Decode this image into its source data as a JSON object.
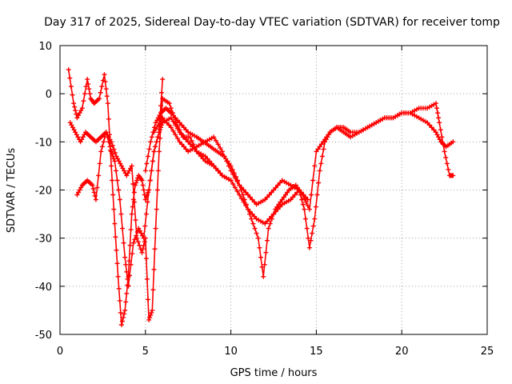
{
  "chart_data": {
    "type": "scatter",
    "title": "Day 317 of 2025, Sidereal Day-to-day VTEC variation (SDTVAR) for receiver tomp",
    "xlabel": "GPS time / hours",
    "ylabel": "SDTVAR / TECUs",
    "xlim": [
      0,
      25
    ],
    "ylim": [
      -50,
      10
    ],
    "xticks": [
      "0",
      "5",
      "10",
      "15",
      "20",
      "25"
    ],
    "yticks": [
      "10",
      "0",
      "-10",
      "-20",
      "-30",
      "-40",
      "-50"
    ],
    "grid": true,
    "marker": "+",
    "color": "#ff0000",
    "series": [
      {
        "x": [
          0.5,
          0.8,
          1.0,
          1.3,
          1.6,
          1.8,
          2.0,
          2.3,
          2.6,
          2.8,
          3.0,
          3.2,
          3.4,
          3.6,
          3.8,
          4.0,
          4.2,
          4.4,
          4.6,
          4.8,
          5.0,
          5.2,
          5.5,
          5.8,
          6.0
        ],
        "y": [
          5,
          -2,
          -5,
          -3,
          3,
          -1,
          -2,
          -1,
          4,
          -2,
          -15,
          -27,
          -38,
          -48,
          -45,
          -38,
          -25,
          -19,
          -17,
          -18,
          -22,
          -20,
          -12,
          -8,
          3
        ]
      },
      {
        "x": [
          0.6,
          0.9,
          1.2,
          1.5,
          1.8,
          2.1,
          2.4,
          2.7,
          3.0,
          3.2,
          3.5,
          3.8,
          4.0,
          4.3,
          4.6,
          4.9,
          5.2,
          5.5,
          5.8,
          6.0,
          6.5,
          7.0,
          7.5,
          8.0,
          8.5,
          9.0,
          9.5,
          10.0
        ],
        "y": [
          -6,
          -8,
          -10,
          -8,
          -9,
          -10,
          -9,
          -8,
          -12,
          -14,
          -22,
          -34,
          -40,
          -31,
          -28,
          -30,
          -20,
          -12,
          -8,
          -6,
          -5,
          -8,
          -10,
          -12,
          -14,
          -15,
          -17,
          -18
        ]
      },
      {
        "x": [
          1.0,
          1.3,
          1.6,
          1.9,
          2.1,
          2.4,
          2.7,
          3.0,
          3.3,
          3.6,
          3.9,
          4.2,
          4.5,
          4.8,
          5.0,
          5.2,
          5.4,
          5.6,
          5.8,
          6.0,
          6.4,
          6.8,
          7.2,
          7.6,
          8.0,
          8.5,
          9.0,
          9.5,
          10.0,
          10.5,
          11.0,
          11.5,
          12.0,
          12.5,
          13.0,
          13.5,
          14.0,
          14.5
        ],
        "y": [
          -21,
          -19,
          -18,
          -19,
          -22,
          -12,
          -8,
          -10,
          -13,
          -15,
          -17,
          -15,
          -30,
          -33,
          -30,
          -47,
          -45,
          -28,
          -12,
          -1,
          -2,
          -6,
          -9,
          -9,
          -12,
          -13,
          -15,
          -17,
          -18,
          -21,
          -24,
          -26,
          -27,
          -25,
          -23,
          -22,
          -20,
          -22
        ]
      },
      {
        "x": [
          5.0,
          5.3,
          5.6,
          5.9,
          6.2,
          6.5,
          7.0,
          7.5,
          8.0,
          8.4,
          8.8,
          9.2,
          9.6,
          10.0,
          10.4,
          10.8,
          11.2,
          11.6,
          11.9,
          12.2,
          12.6,
          13.0,
          13.4,
          13.8,
          14.2,
          14.6,
          15.0,
          15.4,
          15.8,
          16.2,
          16.6,
          17.0,
          17.5,
          18.0,
          18.5,
          19.0,
          19.5,
          20.0,
          20.5,
          21.0,
          21.5,
          22.0,
          22.3,
          22.6,
          23.0
        ],
        "y": [
          -16,
          -10,
          -6,
          -4,
          -3,
          -4,
          -6,
          -8,
          -9,
          -10,
          -11,
          -12,
          -13,
          -15,
          -18,
          -22,
          -26,
          -30,
          -38,
          -28,
          -24,
          -22,
          -20,
          -19,
          -21,
          -24,
          -12,
          -10,
          -8,
          -7,
          -8,
          -9,
          -8,
          -7,
          -6,
          -5,
          -5,
          -4,
          -4,
          -5,
          -6,
          -8,
          -10,
          -11,
          -10
        ]
      },
      {
        "x": [
          5.5,
          6.0,
          6.5,
          7.0,
          7.5,
          8.0,
          8.5,
          9.0,
          9.5,
          10.0,
          10.5,
          11.0,
          11.5,
          12.0,
          12.5,
          13.0,
          13.5,
          14.0,
          14.3,
          14.6,
          14.9,
          15.2,
          15.5,
          15.8,
          16.2,
          16.6,
          17.0,
          17.5,
          18.0,
          18.5,
          19.0,
          19.5,
          20.0,
          20.5,
          21.0,
          21.5,
          22.0,
          22.2,
          22.5,
          22.8,
          23.0
        ],
        "y": [
          -8,
          -5,
          -7,
          -10,
          -12,
          -11,
          -10,
          -9,
          -12,
          -16,
          -19,
          -21,
          -23,
          -22,
          -20,
          -18,
          -19,
          -20,
          -24,
          -32,
          -26,
          -16,
          -10,
          -8,
          -7,
          -7,
          -8,
          -8,
          -7,
          -6,
          -5,
          -5,
          -4,
          -4,
          -3,
          -3,
          -2,
          -6,
          -12,
          -17,
          -17
        ]
      }
    ]
  }
}
